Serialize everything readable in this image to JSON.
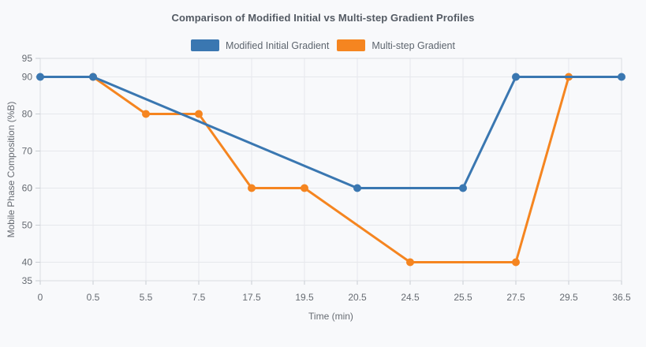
{
  "card": {
    "title": "Comparison of Modified Initial vs Multi-step Gradient Profiles"
  },
  "legend": {
    "items": [
      {
        "label": "Modified Initial Gradient",
        "color": "#3a77b1"
      },
      {
        "label": "Multi-step Gradient",
        "color": "#f58520"
      }
    ]
  },
  "axes": {
    "x_title": "Time (min)",
    "y_title": "Mobile Phase Composition (%B)"
  },
  "chart_data": {
    "type": "line",
    "title": "Comparison of Modified Initial vs Multi-step Gradient Profiles",
    "xlabel": "Time (min)",
    "ylabel": "Mobile Phase Composition (%B)",
    "categories": [
      "0",
      "0.5",
      "5.5",
      "7.5",
      "17.5",
      "19.5",
      "20.5",
      "24.5",
      "25.5",
      "27.5",
      "29.5",
      "36.5"
    ],
    "y_ticks": [
      35,
      40,
      50,
      60,
      70,
      80,
      90,
      95
    ],
    "ylim": [
      35,
      95
    ],
    "grid": true,
    "legend_position": "top",
    "markers": true,
    "series": [
      {
        "name": "Modified Initial Gradient",
        "color": "#3a77b1",
        "points": [
          [
            "0",
            90
          ],
          [
            "0.5",
            90
          ],
          [
            "20.5",
            60
          ],
          [
            "25.5",
            60
          ],
          [
            "27.5",
            90
          ],
          [
            "36.5",
            90
          ]
        ]
      },
      {
        "name": "Multi-step Gradient",
        "color": "#f58520",
        "points": [
          [
            "0.5",
            90
          ],
          [
            "5.5",
            80
          ],
          [
            "7.5",
            80
          ],
          [
            "17.5",
            60
          ],
          [
            "19.5",
            60
          ],
          [
            "24.5",
            40
          ],
          [
            "27.5",
            40
          ],
          [
            "29.5",
            90
          ]
        ]
      }
    ]
  },
  "style": {
    "background": "#f8f9fb",
    "grid_color": "#e6e8ec",
    "border_color": "#dadde2",
    "tick_color": "#c9cdd3",
    "tick_text_color": "#666b72",
    "title_color": "#535a63"
  }
}
